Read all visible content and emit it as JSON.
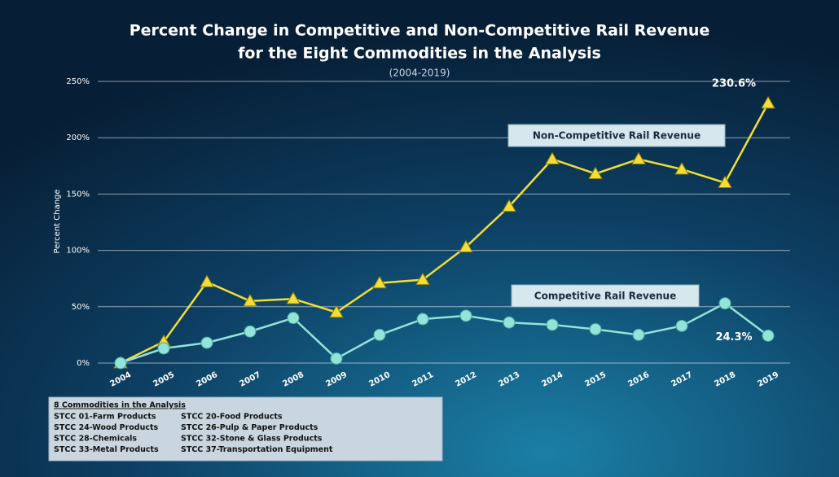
{
  "chart_data": {
    "type": "line",
    "title": [
      "Percent Change in Competitive and Non-Competitive Rail Revenue",
      "for the Eight Commodities in the Analysis"
    ],
    "subtitle": "(2004-2019)",
    "y_label": "Percent Change",
    "categories": [
      "2004",
      "2005",
      "2006",
      "2007",
      "2008",
      "2009",
      "2010",
      "2011",
      "2012",
      "2013",
      "2014",
      "2015",
      "2016",
      "2017",
      "2018",
      "2019"
    ],
    "series": [
      {
        "name": "Non-Competitive Rail Revenue",
        "color": "#f2de35",
        "marker": "triangle",
        "values": [
          0,
          19,
          72,
          55,
          57,
          45,
          71,
          74,
          103,
          139,
          181,
          168,
          181,
          172,
          160,
          230.6
        ],
        "value_labels": [
          null,
          null,
          null,
          null,
          null,
          null,
          null,
          null,
          null,
          null,
          null,
          null,
          null,
          null,
          null,
          "230.6%"
        ]
      },
      {
        "name": "Competitive Rail Revenue",
        "color": "#93e3d8",
        "marker": "circle",
        "values": [
          0,
          13,
          18,
          28,
          40,
          4,
          25,
          39,
          42,
          36,
          34,
          30,
          25,
          33,
          53,
          24.3
        ],
        "value_labels": [
          null,
          null,
          null,
          null,
          null,
          null,
          null,
          null,
          null,
          null,
          null,
          null,
          null,
          null,
          null,
          "24.3%"
        ]
      }
    ],
    "ylim": [
      0,
      250
    ],
    "yticks": [
      {
        "value": 0,
        "label": "0%"
      },
      {
        "value": 50,
        "label": "50%"
      },
      {
        "value": 100,
        "label": "100%"
      },
      {
        "value": 150,
        "label": "150%"
      },
      {
        "value": 200,
        "label": "200%"
      },
      {
        "value": 250,
        "label": "250%"
      }
    ],
    "grid": true,
    "note": {
      "title": "8 Commodities in the Analysis",
      "items": [
        "STCC 01-Farm Products",
        "STCC 24-Wood Products",
        "STCC 28-Chemicals",
        "STCC 33-Metal Products",
        "STCC 20-Food Products",
        "STCC 26-Pulp & Paper Products",
        "STCC 32-Stone & Glass Products",
        "STCC 37-Transportation Equipment"
      ]
    }
  }
}
